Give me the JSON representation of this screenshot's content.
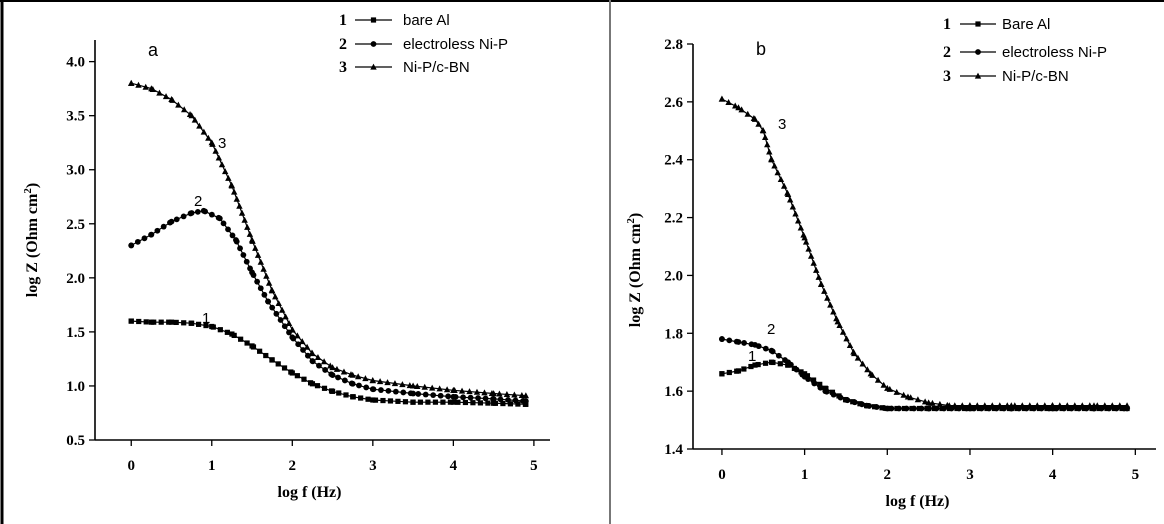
{
  "chart_data": [
    {
      "type": "line",
      "panel_label": "a",
      "xlabel": "log f (Hz)",
      "ylabel": "log Z (Ohm cm",
      "ylabel_sup": "2",
      "ylabel_close": ")",
      "xlim": [
        -0.45,
        5.2
      ],
      "ylim": [
        0.5,
        4.2
      ],
      "xticks": [
        0,
        1,
        2,
        3,
        4,
        5
      ],
      "xtick_labels": [
        "0",
        "1",
        "2",
        "3",
        "4",
        "5"
      ],
      "yticks": [
        0.5,
        1.0,
        1.5,
        2.0,
        2.5,
        3.0,
        3.5,
        4.0
      ],
      "ytick_labels": [
        "0.5",
        "1.0",
        "1.5",
        "2.0",
        "2.5",
        "3.0",
        "3.5",
        "4.0"
      ],
      "legend_position": "top-right",
      "series": [
        {
          "name": "bare Al",
          "legend_number": "1",
          "curve_label": "1",
          "marker": "square",
          "x": [
            0,
            0.25,
            0.5,
            0.75,
            1.0,
            1.25,
            1.5,
            1.75,
            2.0,
            2.25,
            2.5,
            2.75,
            3.0,
            3.5,
            4.0,
            4.5,
            4.9
          ],
          "y": [
            1.6,
            1.59,
            1.59,
            1.58,
            1.55,
            1.48,
            1.37,
            1.24,
            1.12,
            1.02,
            0.95,
            0.9,
            0.87,
            0.85,
            0.85,
            0.84,
            0.83
          ]
        },
        {
          "name": "electroless Ni-P",
          "legend_number": "2",
          "curve_label": "2",
          "marker": "circle",
          "x": [
            0,
            0.25,
            0.5,
            0.75,
            0.9,
            1.1,
            1.3,
            1.5,
            1.7,
            2.0,
            2.25,
            2.5,
            2.75,
            3.0,
            3.5,
            4.0,
            4.5,
            4.9
          ],
          "y": [
            2.3,
            2.4,
            2.52,
            2.6,
            2.62,
            2.55,
            2.35,
            2.05,
            1.78,
            1.45,
            1.23,
            1.1,
            1.02,
            0.97,
            0.93,
            0.9,
            0.88,
            0.86
          ]
        },
        {
          "name": "Ni-P/c-BN",
          "legend_number": "3",
          "curve_label": "3",
          "marker": "triangle",
          "x": [
            0,
            0.25,
            0.5,
            0.75,
            1.0,
            1.25,
            1.5,
            1.75,
            2.0,
            2.25,
            2.5,
            2.75,
            3.0,
            3.5,
            4.0,
            4.5,
            4.9
          ],
          "y": [
            3.8,
            3.75,
            3.65,
            3.5,
            3.25,
            2.85,
            2.35,
            1.88,
            1.52,
            1.3,
            1.17,
            1.1,
            1.05,
            1.0,
            0.96,
            0.93,
            0.91
          ]
        }
      ]
    },
    {
      "type": "line",
      "panel_label": "b",
      "xlabel": "log f (Hz)",
      "ylabel": "log Z (Ohm cm",
      "ylabel_sup": "2",
      "ylabel_close": ")",
      "xlim": [
        -0.35,
        5.25
      ],
      "ylim": [
        1.4,
        2.8
      ],
      "xticks": [
        0,
        1,
        2,
        3,
        4,
        5
      ],
      "xtick_labels": [
        "0",
        "1",
        "2",
        "3",
        "4",
        "5"
      ],
      "yticks": [
        1.4,
        1.6,
        1.8,
        2.0,
        2.2,
        2.4,
        2.6,
        2.8
      ],
      "ytick_labels": [
        "1.4",
        "1.6",
        "1.8",
        "2.0",
        "2.2",
        "2.4",
        "2.6",
        "2.8"
      ],
      "legend_position": "top-right",
      "series": [
        {
          "name": "Bare Al",
          "legend_number": "1",
          "curve_label": "1",
          "marker": "square",
          "x": [
            0,
            0.2,
            0.4,
            0.6,
            0.8,
            1.0,
            1.25,
            1.5,
            1.75,
            2.0,
            2.5,
            3.0,
            3.5,
            4.0,
            4.5,
            4.9
          ],
          "y": [
            1.66,
            1.67,
            1.69,
            1.7,
            1.69,
            1.66,
            1.61,
            1.57,
            1.55,
            1.54,
            1.54,
            1.54,
            1.54,
            1.54,
            1.54,
            1.54
          ]
        },
        {
          "name": "electroless Ni-P",
          "legend_number": "2",
          "curve_label": "2",
          "marker": "circle",
          "x": [
            0,
            0.2,
            0.4,
            0.6,
            0.8,
            1.0,
            1.25,
            1.5,
            1.75,
            2.0,
            2.5,
            3.0,
            3.5,
            4.0,
            4.5,
            4.9
          ],
          "y": [
            1.78,
            1.77,
            1.76,
            1.74,
            1.7,
            1.65,
            1.6,
            1.57,
            1.55,
            1.54,
            1.54,
            1.54,
            1.54,
            1.54,
            1.54,
            1.54
          ]
        },
        {
          "name": "Ni-P/c-BN",
          "legend_number": "3",
          "curve_label": "3",
          "marker": "triangle",
          "x": [
            0,
            0.2,
            0.4,
            0.5,
            0.6,
            0.8,
            1.0,
            1.2,
            1.4,
            1.6,
            1.8,
            2.0,
            2.25,
            2.5,
            2.75,
            3.0,
            3.5,
            4.0,
            4.5,
            4.9
          ],
          "y": [
            2.61,
            2.58,
            2.54,
            2.5,
            2.4,
            2.28,
            2.13,
            1.97,
            1.84,
            1.73,
            1.66,
            1.61,
            1.58,
            1.56,
            1.55,
            1.55,
            1.55,
            1.55,
            1.55,
            1.55
          ]
        }
      ]
    }
  ]
}
